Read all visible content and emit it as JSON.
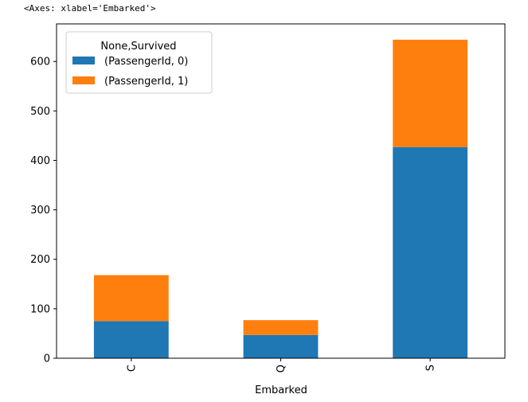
{
  "output_repr": "<Axes: xlabel='Embarked'>",
  "chart_data": {
    "type": "bar",
    "stacked": true,
    "xlabel": "Embarked",
    "ylabel": "",
    "categories": [
      "C",
      "Q",
      "S"
    ],
    "series": [
      {
        "name": "(PassengerId, 0)",
        "color": "#1f77b4",
        "values": [
          75,
          47,
          427
        ]
      },
      {
        "name": "(PassengerId, 1)",
        "color": "#ff7f0e",
        "values": [
          93,
          30,
          217
        ]
      }
    ],
    "ylim": [
      0,
      676
    ],
    "yticks": [
      0,
      100,
      200,
      300,
      400,
      500,
      600
    ],
    "legend": {
      "title": "None,Survived",
      "placement": "top-left"
    },
    "grid": false
  }
}
